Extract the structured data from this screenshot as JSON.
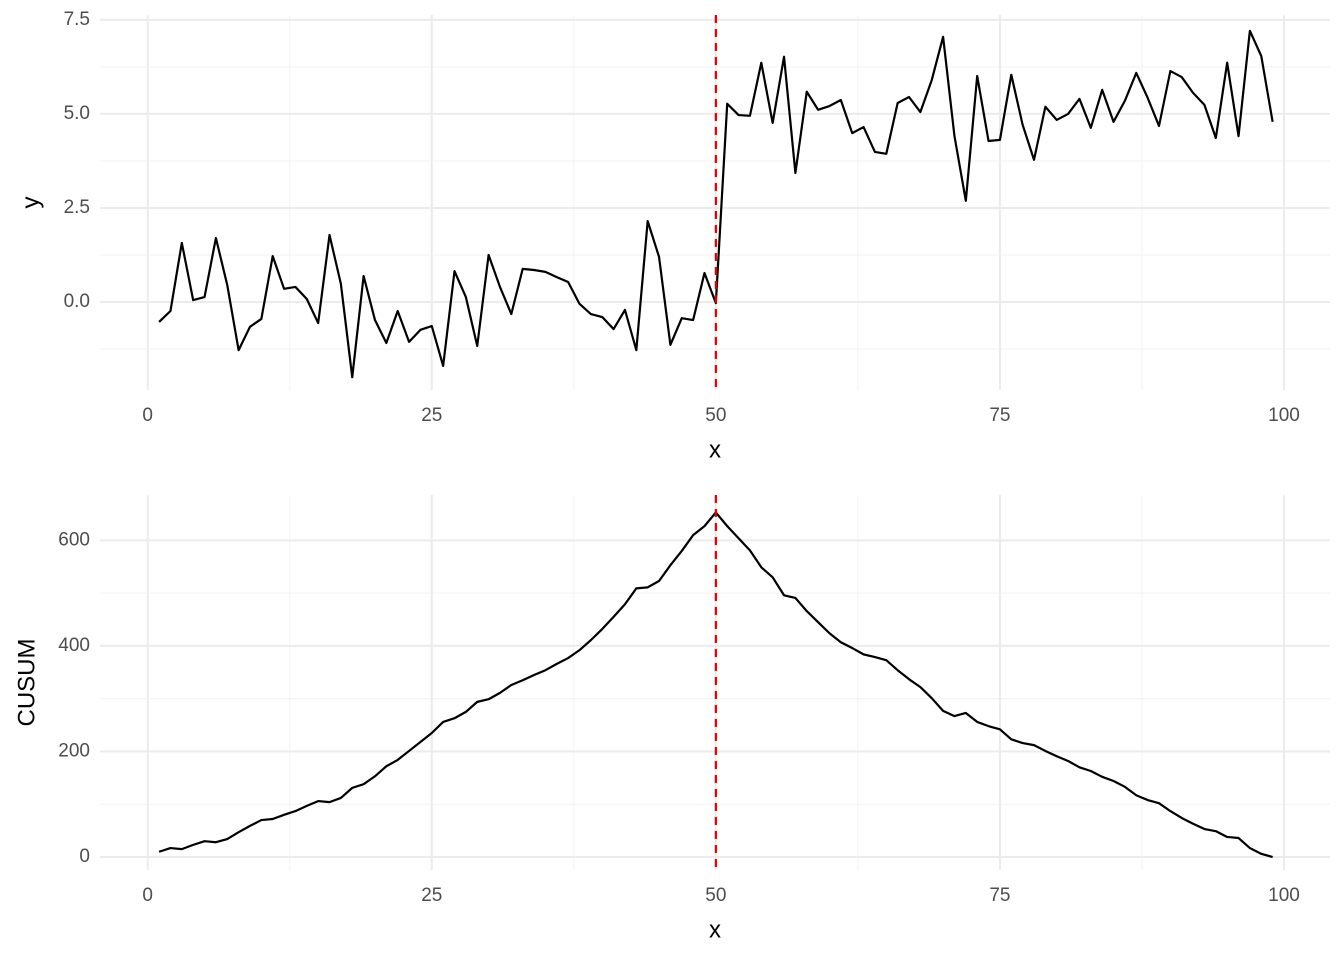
{
  "chart_data": [
    {
      "type": "line",
      "x_label": "x",
      "y_label": "y",
      "x": [
        1,
        2,
        3,
        4,
        5,
        6,
        7,
        8,
        9,
        10,
        11,
        12,
        13,
        14,
        15,
        16,
        17,
        18,
        19,
        20,
        21,
        22,
        23,
        24,
        25,
        26,
        27,
        28,
        29,
        30,
        31,
        32,
        33,
        34,
        35,
        36,
        37,
        38,
        39,
        40,
        41,
        42,
        43,
        44,
        45,
        46,
        47,
        48,
        49,
        50,
        51,
        52,
        53,
        54,
        55,
        56,
        57,
        58,
        59,
        60,
        61,
        62,
        63,
        64,
        65,
        66,
        67,
        68,
        69,
        70,
        71,
        72,
        73,
        74,
        75,
        76,
        77,
        78,
        79,
        80,
        81,
        82,
        83,
        84,
        85,
        86,
        87,
        88,
        89,
        90,
        91,
        92,
        93,
        94,
        95,
        96,
        97,
        98,
        99
      ],
      "series": [
        {
          "color": "#000000",
          "values": [
            -0.53,
            -0.24,
            1.57,
            0.05,
            0.13,
            1.7,
            0.45,
            -1.28,
            -0.66,
            -0.45,
            1.22,
            0.35,
            0.4,
            0.08,
            -0.56,
            1.78,
            0.48,
            -2.0,
            0.69,
            -0.48,
            -1.09,
            -0.24,
            -1.06,
            -0.74,
            -0.64,
            -1.7,
            0.82,
            0.13,
            -1.17,
            1.25,
            0.4,
            -0.32,
            0.88,
            0.85,
            0.8,
            0.66,
            0.53,
            -0.05,
            -0.32,
            -0.4,
            -0.72,
            -0.21,
            -1.28,
            2.15,
            1.2,
            -1.14,
            -0.43,
            -0.48,
            0.77,
            -0.03,
            5.27,
            4.97,
            4.95,
            6.36,
            4.76,
            6.52,
            3.43,
            5.59,
            5.11,
            5.21,
            5.37,
            4.49,
            4.65,
            3.99,
            3.94,
            5.29,
            5.45,
            5.05,
            5.9,
            7.05,
            4.41,
            2.69,
            6.01,
            4.28,
            4.31,
            6.04,
            4.71,
            3.78,
            5.19,
            4.84,
            5.0,
            5.4,
            4.63,
            5.64,
            4.79,
            5.35,
            6.09,
            5.43,
            4.68,
            6.14,
            5.98,
            5.56,
            5.24,
            4.36,
            6.36,
            4.41,
            7.21,
            6.54,
            4.79
          ]
        }
      ],
      "xlim": [
        -4.2,
        104.05
      ],
      "xticks": [
        0,
        25,
        50,
        75,
        100
      ],
      "minor_xticks": [
        12.5,
        37.5,
        62.5,
        87.5
      ],
      "ylim": [
        -2.34,
        7.63
      ],
      "yticks": [
        {
          "value": 0,
          "label": "0.0"
        },
        2.5,
        {
          "value": 5,
          "label": "5.0"
        },
        7.5
      ],
      "minor_yticks": [
        -1.25,
        1.25,
        3.75,
        6.25
      ],
      "grid": true,
      "vline": 50,
      "vline_color": "#e00000"
    },
    {
      "type": "line",
      "x_label": "x",
      "y_label": "CUSUM",
      "x": [
        1,
        2,
        3,
        4,
        5,
        6,
        7,
        8,
        9,
        10,
        11,
        12,
        13,
        14,
        15,
        16,
        17,
        18,
        19,
        20,
        21,
        22,
        23,
        24,
        25,
        26,
        27,
        28,
        29,
        30,
        31,
        32,
        33,
        34,
        35,
        36,
        37,
        38,
        39,
        40,
        41,
        42,
        43,
        44,
        45,
        46,
        47,
        48,
        49,
        50,
        51,
        52,
        53,
        54,
        55,
        56,
        57,
        58,
        59,
        60,
        61,
        62,
        63,
        64,
        65,
        66,
        67,
        68,
        69,
        70,
        71,
        72,
        73,
        74,
        75,
        76,
        77,
        78,
        79,
        80,
        81,
        82,
        83,
        84,
        85,
        86,
        87,
        88,
        89,
        90,
        91,
        92,
        93,
        94,
        95,
        96,
        97,
        98,
        99
      ],
      "series": [
        {
          "color": "#000000",
          "values": [
            10,
            17,
            15,
            23,
            30,
            28,
            34,
            47,
            59,
            70,
            72,
            80,
            87,
            97,
            106,
            104,
            112,
            131,
            138,
            153,
            172,
            184,
            201,
            218,
            235,
            256,
            263,
            275,
            294,
            299,
            311,
            326,
            335,
            345,
            354,
            366,
            377,
            392,
            411,
            432,
            455,
            479,
            509,
            511,
            523,
            553,
            580,
            610,
            627,
            653,
            627,
            604,
            581,
            549,
            530,
            496,
            491,
            466,
            445,
            424,
            407,
            396,
            384,
            379,
            373,
            354,
            337,
            322,
            301,
            277,
            267,
            273,
            256,
            248,
            242,
            223,
            216,
            212,
            201,
            191,
            182,
            170,
            163,
            152,
            144,
            133,
            117,
            108,
            102,
            87,
            74,
            63,
            53,
            49,
            38,
            36,
            17,
            6,
            0
          ]
        }
      ],
      "xlim": [
        -4.2,
        104.05
      ],
      "xticks": [
        0,
        25,
        50,
        75,
        100
      ],
      "minor_xticks": [
        12.5,
        37.5,
        62.5,
        87.5
      ],
      "ylim": [
        -24.6,
        686
      ],
      "yticks": [
        0,
        200,
        400,
        600
      ],
      "minor_yticks": [
        100,
        300,
        500
      ],
      "grid": true,
      "vline": 50,
      "vline_color": "#e00000"
    }
  ]
}
